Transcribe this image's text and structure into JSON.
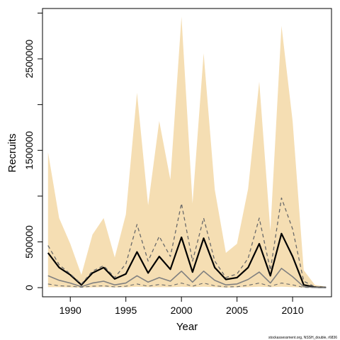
{
  "colors": {
    "ci_fill": "#f5deb3",
    "median_line": "#000000",
    "secondary_line": "#808080",
    "dashed_line": "#696969",
    "frame": "#000000"
  },
  "footnote": "stockassessment.org, NSSH_double, r6836",
  "chart_data": {
    "type": "line",
    "title": "",
    "xlabel": "Year",
    "ylabel": "Recruits",
    "xlim": [
      1987.5,
      2013.5
    ],
    "ylim": [
      -100000,
      3050000
    ],
    "x_ticks": [
      1990,
      1995,
      2000,
      2005,
      2010
    ],
    "x_tick_labels": [
      "1990",
      "1995",
      "2000",
      "2005",
      "2010"
    ],
    "y_ticks": [
      0,
      500000,
      1500000,
      2500000
    ],
    "y_tick_labels": [
      "0",
      "500000",
      "1500000",
      "2500000"
    ],
    "y_minor_ticks": [
      1000000,
      2000000,
      3000000
    ],
    "grid": false,
    "legend": "none",
    "years": [
      1988,
      1989,
      1990,
      1991,
      1992,
      1993,
      1994,
      1995,
      1996,
      1997,
      1998,
      1999,
      2000,
      2001,
      2002,
      2003,
      2004,
      2005,
      2006,
      2007,
      2008,
      2009,
      2010,
      2011,
      2012,
      2013
    ],
    "confidence_band": {
      "lower": [
        5000,
        5000,
        3000,
        1000,
        4000,
        5000,
        2000,
        4000,
        10000,
        5000,
        5000,
        5000,
        10000,
        5000,
        10000,
        5000,
        1000,
        2000,
        5000,
        10000,
        5000,
        10000,
        5000,
        500,
        100,
        50
      ],
      "upper": [
        1480000,
        760000,
        480000,
        140000,
        580000,
        760000,
        330000,
        800000,
        2130000,
        900000,
        1820000,
        1180000,
        2960000,
        920000,
        2560000,
        1070000,
        380000,
        480000,
        1080000,
        2250000,
        620000,
        2860000,
        1820000,
        190000,
        30000,
        10000
      ]
    },
    "series": [
      {
        "style": "solid-black",
        "values": [
          380000,
          220000,
          140000,
          30000,
          160000,
          220000,
          95000,
          150000,
          390000,
          160000,
          340000,
          200000,
          550000,
          170000,
          540000,
          220000,
          90000,
          110000,
          220000,
          480000,
          130000,
          590000,
          340000,
          30000,
          5000,
          2000
        ]
      },
      {
        "style": "dashed-upper",
        "values": [
          460000,
          250000,
          150000,
          40000,
          180000,
          240000,
          110000,
          260000,
          690000,
          290000,
          560000,
          340000,
          920000,
          290000,
          760000,
          290000,
          110000,
          150000,
          320000,
          760000,
          190000,
          980000,
          640000,
          70000,
          10000,
          3000
        ]
      },
      {
        "style": "solid-gray",
        "values": [
          130000,
          80000,
          50000,
          10000,
          50000,
          70000,
          30000,
          50000,
          130000,
          60000,
          110000,
          70000,
          180000,
          60000,
          180000,
          80000,
          30000,
          40000,
          90000,
          170000,
          50000,
          210000,
          120000,
          10000,
          2000,
          1000
        ]
      },
      {
        "style": "dashed-lower",
        "values": [
          40000,
          20000,
          15000,
          5000,
          15000,
          20000,
          8000,
          15000,
          40000,
          15000,
          35000,
          20000,
          50000,
          15000,
          50000,
          20000,
          8000,
          10000,
          25000,
          50000,
          15000,
          50000,
          30000,
          3000,
          500,
          200
        ]
      }
    ]
  }
}
